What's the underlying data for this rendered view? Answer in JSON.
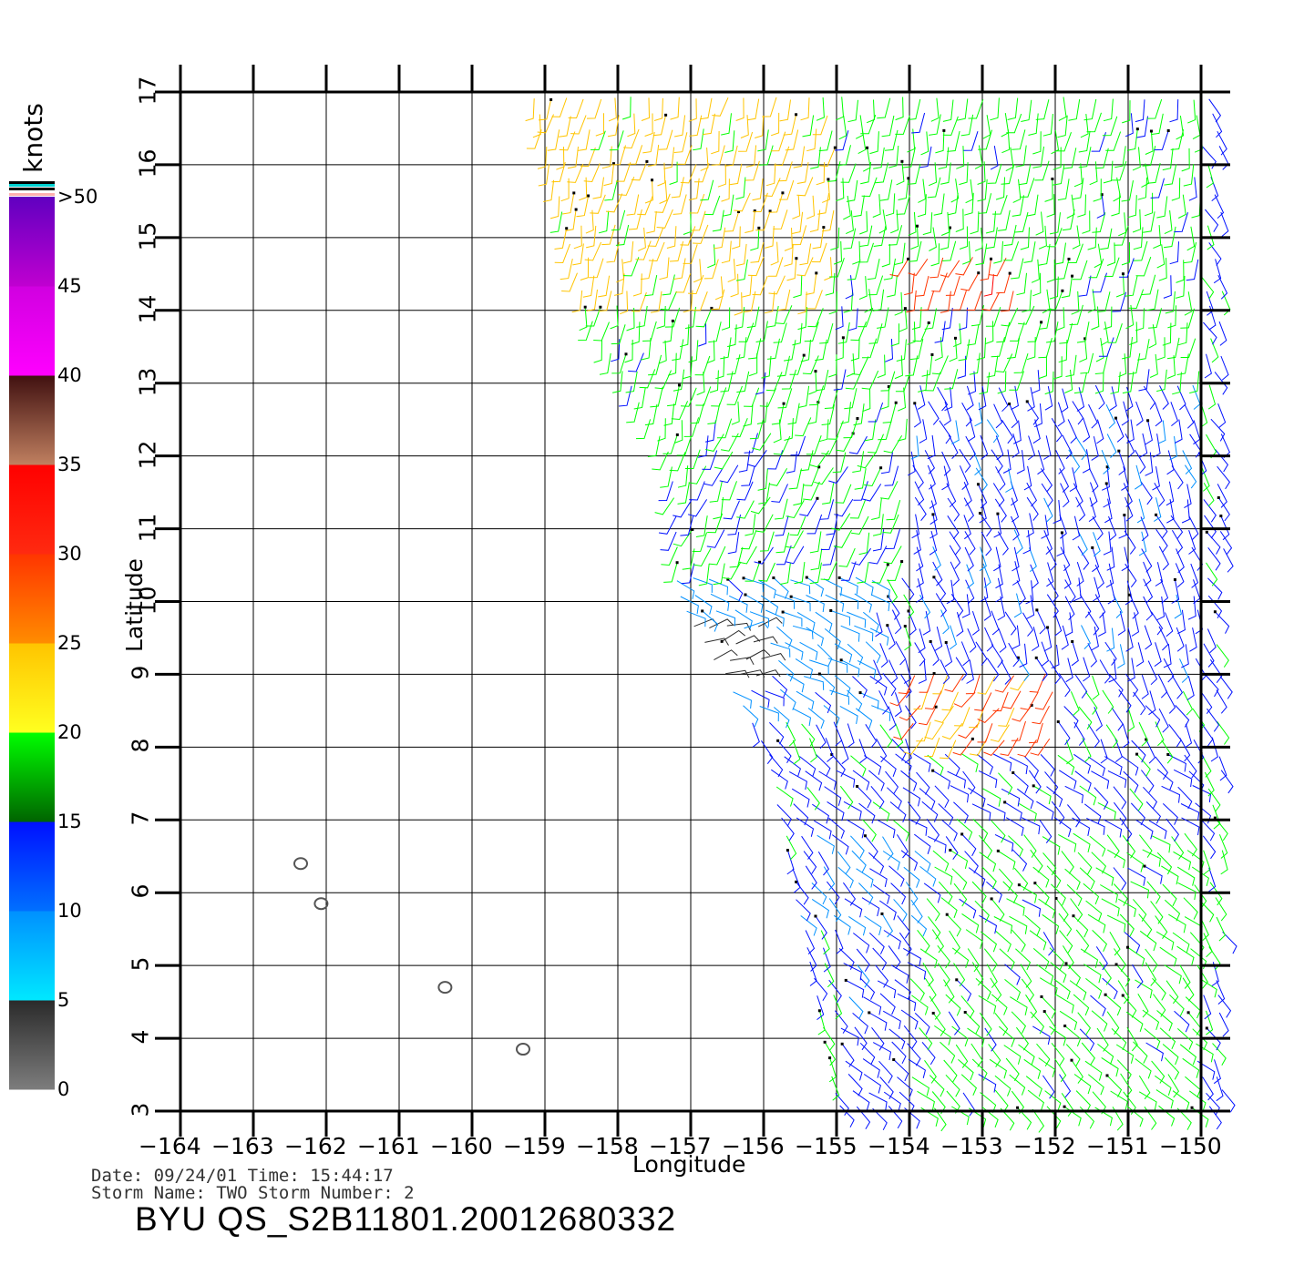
{
  "axes": {
    "xlabel": "Longitude",
    "ylabel": "Latitude",
    "x_ticks": [
      "−164",
      "−163",
      "−162",
      "−161",
      "−160",
      "−159",
      "−158",
      "−157",
      "−156",
      "−155",
      "−154",
      "−153",
      "−152",
      "−151",
      "−150"
    ],
    "y_ticks": [
      "3",
      "4",
      "5",
      "6",
      "7",
      "8",
      "9",
      "10",
      "11",
      "12",
      "13",
      "14",
      "15",
      "16",
      "17"
    ],
    "x_range": [
      -164,
      -150
    ],
    "y_range": [
      3,
      17
    ],
    "grid": true
  },
  "colorbar": {
    "unit": "knots",
    "labels": [
      "0",
      "5",
      "10",
      "15",
      "20",
      "25",
      "30",
      "35",
      "40",
      "45",
      ">50"
    ],
    "bands": [
      {
        "from": 0,
        "to": 5,
        "colors": [
          "#7d7d7d",
          "#2a2a2a"
        ]
      },
      {
        "from": 5,
        "to": 10,
        "colors": [
          "#00e8ff",
          "#0090ff"
        ]
      },
      {
        "from": 10,
        "to": 15,
        "colors": [
          "#0070ff",
          "#0010ff"
        ]
      },
      {
        "from": 15,
        "to": 20,
        "colors": [
          "#006400",
          "#00ff00"
        ]
      },
      {
        "from": 20,
        "to": 25,
        "colors": [
          "#ffff20",
          "#ffc400"
        ]
      },
      {
        "from": 25,
        "to": 30,
        "colors": [
          "#ff8c00",
          "#ff3500"
        ]
      },
      {
        "from": 30,
        "to": 35,
        "colors": [
          "#ff2a10",
          "#ff0000"
        ]
      },
      {
        "from": 35,
        "to": 40,
        "colors": [
          "#c08060",
          "#401010"
        ]
      },
      {
        "from": 40,
        "to": 45,
        "colors": [
          "#ff00ff",
          "#d000e0"
        ]
      },
      {
        "from": 45,
        "to": 50,
        "colors": [
          "#c000d0",
          "#6000c0"
        ]
      }
    ]
  },
  "footer": {
    "date_line": "Date: 09/24/01   Time: 15:44:17",
    "storm_line": "Storm Name: TWO   Storm Number: 2",
    "title": "BYU QS_S2B11801.20012680332"
  },
  "chart_data": {
    "type": "vector-field",
    "x_range": [
      -164,
      -150
    ],
    "y_range": [
      3,
      17
    ],
    "unit": "knots",
    "swath_edge_lon_at_lat": [
      [
        17,
        -159.2
      ],
      [
        14,
        -158.5
      ],
      [
        12,
        -157.3
      ],
      [
        10,
        -157.2
      ],
      [
        8,
        -156.0
      ],
      [
        6,
        -155.6
      ],
      [
        3,
        -155.0
      ]
    ],
    "wind_regions": [
      {
        "lat": [
          14.2,
          17
        ],
        "lon": [
          -159.2,
          -155.0
        ],
        "speed": 22,
        "dir_deg": 80
      },
      {
        "lat": [
          13,
          17
        ],
        "lon": [
          -155.0,
          -150
        ],
        "speed": 17,
        "dir_deg": 85
      },
      {
        "lat": [
          14.2,
          14.8
        ],
        "lon": [
          -154.0,
          -152.5
        ],
        "speed": 28,
        "dir_deg": 70
      },
      {
        "lat": [
          12,
          14.2
        ],
        "lon": [
          -158.5,
          -152.0
        ],
        "speed": 17,
        "dir_deg": 80
      },
      {
        "lat": [
          9.2,
          13
        ],
        "lon": [
          -154.0,
          -150
        ],
        "speed": 12,
        "dir_deg": 110
      },
      {
        "lat": [
          10.5,
          12.5
        ],
        "lon": [
          -157.5,
          -154.0
        ],
        "speed": 16,
        "dir_deg": 70
      },
      {
        "lat": [
          8.5,
          10.5
        ],
        "lon": [
          -157.2,
          -154.5
        ],
        "speed": 8,
        "dir_deg": 150
      },
      {
        "lat": [
          8.8,
          9.8
        ],
        "lon": [
          -157.0,
          -156.0
        ],
        "speed": 3,
        "dir_deg": 200
      },
      {
        "lat": [
          7.8,
          9.2
        ],
        "lon": [
          -154.0,
          -152.0
        ],
        "speed": 26,
        "dir_deg": 60
      },
      {
        "lat": [
          7.8,
          9.2
        ],
        "lon": [
          -152.0,
          -150
        ],
        "speed": 14,
        "dir_deg": 120
      },
      {
        "lat": [
          6.8,
          8
        ],
        "lon": [
          -156.0,
          -150
        ],
        "speed": 13,
        "dir_deg": 140
      },
      {
        "lat": [
          5.5,
          7
        ],
        "lon": [
          -155.6,
          -153.8
        ],
        "speed": 10,
        "dir_deg": 135
      },
      {
        "lat": [
          5.5,
          6.8
        ],
        "lon": [
          -153.8,
          -150
        ],
        "speed": 17,
        "dir_deg": 140
      },
      {
        "lat": [
          3,
          5.5
        ],
        "lon": [
          -155.0,
          -150
        ],
        "speed": 17,
        "dir_deg": 135
      },
      {
        "lat": [
          3,
          5.5
        ],
        "lon": [
          -155.0,
          -154.0
        ],
        "speed": 12,
        "dir_deg": 140
      }
    ],
    "islands": [
      {
        "lon": -162.35,
        "lat": 6.4
      },
      {
        "lon": -162.07,
        "lat": 5.85
      },
      {
        "lon": -160.37,
        "lat": 4.7
      },
      {
        "lon": -159.3,
        "lat": 3.85
      }
    ]
  }
}
